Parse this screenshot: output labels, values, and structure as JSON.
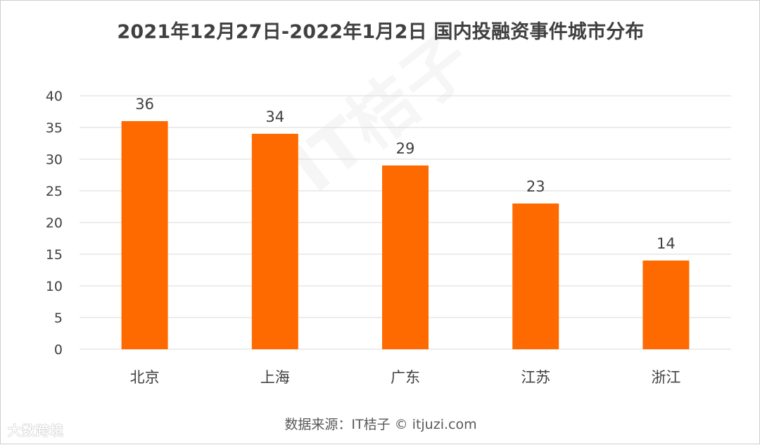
{
  "title": "2021年12月27日-2022年1月2日 国内投融资事件城市分布",
  "source": "数据来源：IT桔子 © itjuzi.com",
  "watermark_corner": "大数跨境",
  "watermark_center": "IT桔子",
  "colors": {
    "bar": "#FF6A00",
    "grid": "#D9D9D9",
    "text": "#404040"
  },
  "chart_data": {
    "type": "bar",
    "title": "2021年12月27日-2022年1月2日 国内投融资事件城市分布",
    "xlabel": "",
    "ylabel": "",
    "categories": [
      "北京",
      "上海",
      "广东",
      "江苏",
      "浙江"
    ],
    "values": [
      36,
      34,
      29,
      23,
      14
    ],
    "yticks": [
      "0",
      "5",
      "10",
      "15",
      "20",
      "25",
      "30",
      "35",
      "40"
    ],
    "ylim": [
      0,
      40
    ],
    "grid": true,
    "data_labels": true
  }
}
